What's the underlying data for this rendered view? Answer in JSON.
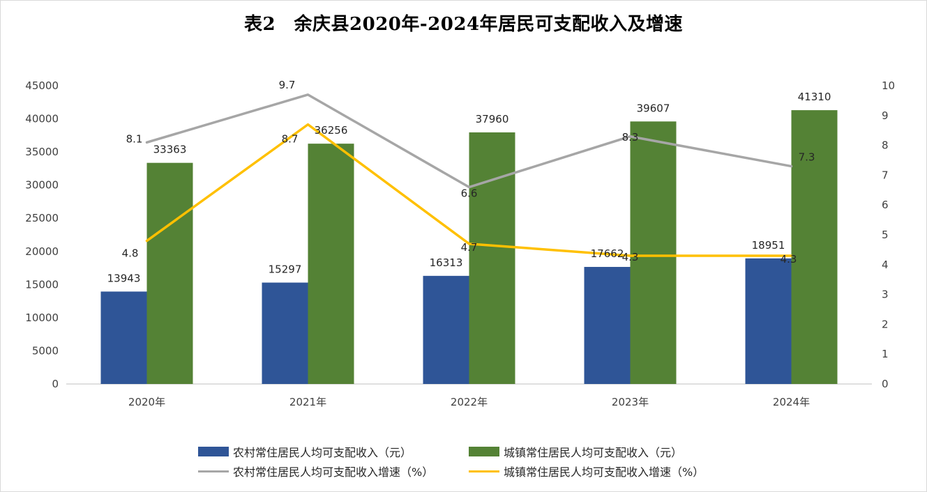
{
  "title": "表2　余庆县2020年-2024年居民可支配收入及增速",
  "colors": {
    "rural_bar": "#2f5597",
    "urban_bar": "#548235",
    "rural_line": "#a6a6a6",
    "urban_line": "#ffc000",
    "axis_text": "#404040",
    "label_text": "#262626",
    "axis_line": "#bfbfbf"
  },
  "chart_data": {
    "type": "bar",
    "title": "表2　余庆县2020年-2024年居民可支配收入及增速",
    "categories": [
      "2020年",
      "2021年",
      "2022年",
      "2023年",
      "2024年"
    ],
    "y_left": {
      "min": 0,
      "max": 45000,
      "step": 5000,
      "ticks": [
        "0",
        "5000",
        "10000",
        "15000",
        "20000",
        "25000",
        "30000",
        "35000",
        "40000",
        "45000"
      ]
    },
    "y_right": {
      "min": 0,
      "max": 10,
      "step": 1,
      "ticks": [
        "0",
        "1",
        "2",
        "3",
        "4",
        "5",
        "6",
        "7",
        "8",
        "9",
        "10"
      ]
    },
    "grid": false,
    "legend_position": "bottom",
    "series": [
      {
        "name": "农村常住居民人均可支配收入（元）",
        "kind": "bar",
        "axis": "left",
        "values": [
          13943,
          15297,
          16313,
          17662,
          18951
        ],
        "labels": [
          "13943",
          "15297",
          "16313",
          "17662",
          "18951"
        ]
      },
      {
        "name": "城镇常住居民人均可支配收入（元）",
        "kind": "bar",
        "axis": "left",
        "values": [
          33363,
          36256,
          37960,
          39607,
          41310
        ],
        "labels": [
          "33363",
          "36256",
          "37960",
          "39607",
          "41310"
        ]
      },
      {
        "name": "农村常住居民人均可支配收入增速（%）",
        "kind": "line",
        "axis": "right",
        "values": [
          8.1,
          9.7,
          6.6,
          8.3,
          7.3
        ],
        "labels": [
          "8.1",
          "9.7",
          "6.6",
          "8.3",
          "7.3"
        ]
      },
      {
        "name": "城镇常住居民人均可支配收入增速（%）",
        "kind": "line",
        "axis": "right",
        "values": [
          4.8,
          8.7,
          4.7,
          4.3,
          4.3
        ],
        "labels": [
          "4.8",
          "8.7",
          "4.7",
          "4.3",
          "4.3"
        ]
      }
    ]
  }
}
